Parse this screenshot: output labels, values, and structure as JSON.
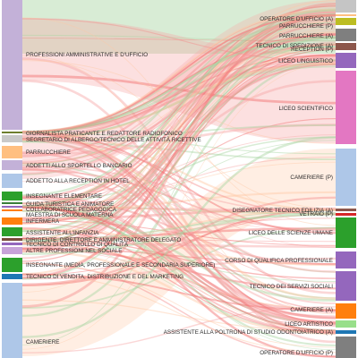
{
  "chart_data": {
    "type": "sankey",
    "title": "",
    "left_nodes": [
      {
        "label": "PROFESSIONI AMMINISTRATIVE E D'UFFICIO",
        "color": "#c3b1d8"
      },
      {
        "label": "GIORNALISTA PRATICANTE E REDATTORE RADIOFONICO",
        "color": "#6d7f2d"
      },
      {
        "label": "SEGRETARIO DI ALBERGO/TECNICO DELLE ATTIVITÀ RICETTIVE",
        "color": "#c9c9c9"
      },
      {
        "label": "PARRUCCHIERE",
        "color": "#ffbf80"
      },
      {
        "label": "ADDETTI ALLO SPORTELLO BANCARIO",
        "color": "#c3b1d8"
      },
      {
        "label": "ADDETTO ALLA RECEPTION IN HOTEL",
        "color": "#aec7e8"
      },
      {
        "label": "INSEGNANTE ELEMENTARE",
        "color": "#2ca02c"
      },
      {
        "label": "GUIDA TURISTICA E ANIMATORE",
        "color": "#3a7d3a"
      },
      {
        "label": "COLLABORATRICE PEDAGOGICA",
        "color": "#9467bd"
      },
      {
        "label": "MAESTRA DI SCUOLA MATERNA",
        "color": "#ff7f0e"
      },
      {
        "label": "INFERMERA",
        "color": "#ff7f0e"
      },
      {
        "label": "ASSISTENTE ALL'INFANZIA",
        "color": "#2ca02c"
      },
      {
        "label": "DIRIGENTE, DIRETTORE E AMMINISTRATORE DELEGATO",
        "color": "#7a4a3a"
      },
      {
        "label": "TECNICO DI CONTROLLO DI QUALITÀ",
        "color": "#9467bd"
      },
      {
        "label": "ALTRE PROFESSIONI NEL SOCIALE",
        "color": "#c7a3d9"
      },
      {
        "label": "INSEGNANTE (MEDIA, PROFESSIONALE E SECONDARIA SUPERIORE)",
        "color": "#2ca02c"
      },
      {
        "label": "TECNICO DI VENDITA, DISTRIBUZIONE E DEL MARKETING",
        "color": "#1f77b4"
      },
      {
        "label": "CAMERIERE",
        "color": "#aec7e8"
      }
    ],
    "right_nodes": [
      {
        "label": "OPERATORE D'UFFICIO (A)",
        "color": "#c5c5c5"
      },
      {
        "label": "PARRUCCHIERE (P)",
        "color": "#ffbf80"
      },
      {
        "label": "PARRUCCHIERE (A)",
        "color": "#bcbd22"
      },
      {
        "label": "TECNICO DI SPEDIZIONE (A)",
        "color": "#7f7f7f"
      },
      {
        "label": "RECEPTION (P)",
        "color": "#8c564b"
      },
      {
        "label": "LICEO LINGUISTICO",
        "color": "#9467bd"
      },
      {
        "label": "LICEO SCIENTIFICO",
        "color": "#e377c2"
      },
      {
        "label": "CAMERIERE (P)",
        "color": "#aec7e8"
      },
      {
        "label": "DISEGNATORE TECNICO EDILIZIA (A)",
        "color": "#8c564b"
      },
      {
        "label": "VETRAIO (P)",
        "color": "#d62728"
      },
      {
        "label": "LICEO DELLE SCIENZE UMANE",
        "color": "#2ca02c"
      },
      {
        "label": "CORSO DI QUALIFICA PROFESSIONALE",
        "color": "#9467bd"
      },
      {
        "label": "TECNICO DEI SERVIZI SOCIALI",
        "color": "#9467bd"
      },
      {
        "label": "CAMERIERE (A)",
        "color": "#ff7f0e"
      },
      {
        "label": "LICEO ARTISTICO",
        "color": "#98df8a"
      },
      {
        "label": "ASSISTENTE ALLA POLTRONA DI STUDIO ODONTOIATRICO (A)",
        "color": "#1f77b4"
      },
      {
        "label": "OPERATORE D'UFFICIO (P)",
        "color": "#7f7f7f"
      }
    ],
    "flow_colors": [
      "#f26b6b",
      "#f7a6a6",
      "#a8d5a2",
      "#ffc7a3",
      "#f48b8b"
    ]
  }
}
